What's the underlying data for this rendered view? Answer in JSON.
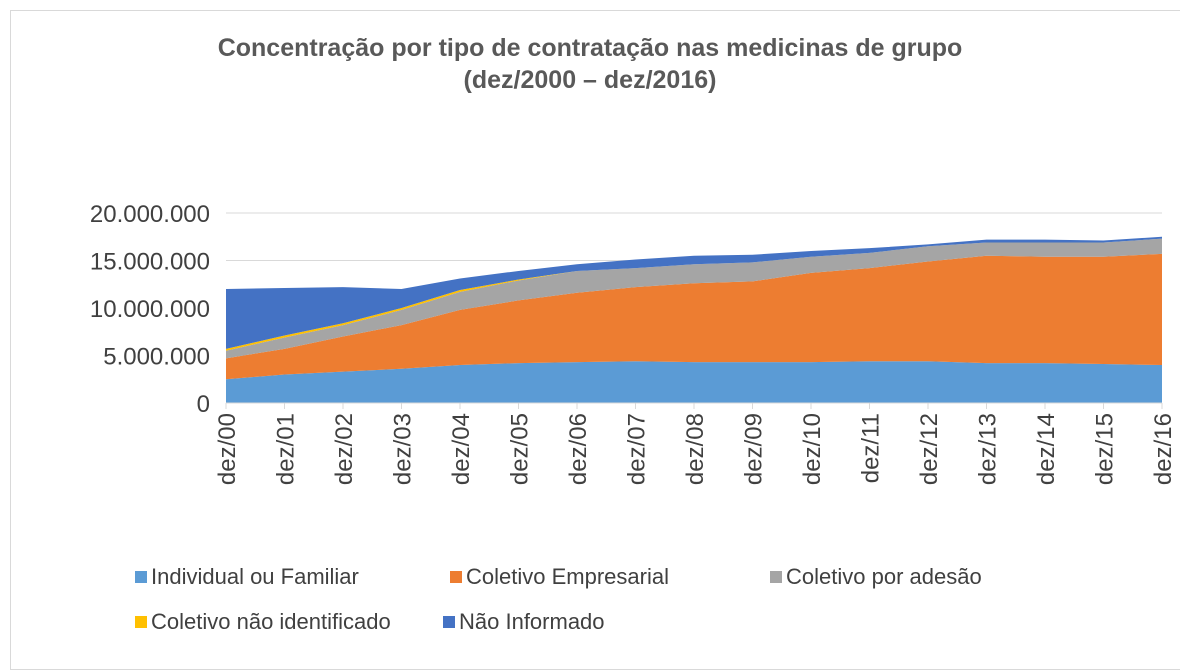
{
  "chart_data": {
    "type": "stacked_area",
    "title": "Concentração por tipo de contratação nas medicinas de grupo (dez/2000 – dez/2016)",
    "categories": [
      "dez/00",
      "dez/01",
      "dez/02",
      "dez/03",
      "dez/04",
      "dez/05",
      "dez/06",
      "dez/07",
      "dez/08",
      "dez/09",
      "dez/10",
      "dez/11",
      "dez/12",
      "dez/13",
      "dez/14",
      "dez/15",
      "dez/16"
    ],
    "series": [
      {
        "name": "Individual ou Familiar",
        "color": "#5b9bd5",
        "values": [
          2500000,
          3000000,
          3300000,
          3600000,
          4000000,
          4200000,
          4300000,
          4400000,
          4300000,
          4300000,
          4300000,
          4400000,
          4400000,
          4200000,
          4200000,
          4100000,
          4000000
        ]
      },
      {
        "name": "Coletivo Empresarial",
        "color": "#ed7d31",
        "values": [
          2200000,
          2700000,
          3700000,
          4600000,
          5800000,
          6600000,
          7300000,
          7800000,
          8300000,
          8500000,
          9400000,
          9800000,
          10500000,
          11300000,
          11200000,
          11300000,
          11700000
        ]
      },
      {
        "name": "Coletivo por adesão",
        "color": "#a5a5a5",
        "values": [
          800000,
          1200000,
          1200000,
          1600000,
          1900000,
          2100000,
          2300000,
          2000000,
          2000000,
          2000000,
          1700000,
          1600000,
          1600000,
          1400000,
          1500000,
          1500000,
          1600000
        ]
      },
      {
        "name": "Coletivo não identificado",
        "color": "#ffc000",
        "values": [
          200000,
          200000,
          200000,
          200000,
          200000,
          100000,
          0,
          0,
          0,
          0,
          0,
          0,
          0,
          0,
          0,
          0,
          0
        ]
      },
      {
        "name": "Não Informado",
        "color": "#4472c4",
        "values": [
          6300000,
          5000000,
          3800000,
          2000000,
          1200000,
          900000,
          700000,
          900000,
          900000,
          800000,
          600000,
          500000,
          200000,
          300000,
          300000,
          200000,
          200000
        ]
      }
    ],
    "ylim": [
      0,
      20000000
    ],
    "yticks": [
      {
        "value": 0,
        "label": "0"
      },
      {
        "value": 5000000,
        "label": "5.000.000"
      },
      {
        "value": 10000000,
        "label": "10.000.000"
      },
      {
        "value": 15000000,
        "label": "15.000.000"
      },
      {
        "value": 20000000,
        "label": "20.000.000"
      }
    ],
    "grid": true
  }
}
